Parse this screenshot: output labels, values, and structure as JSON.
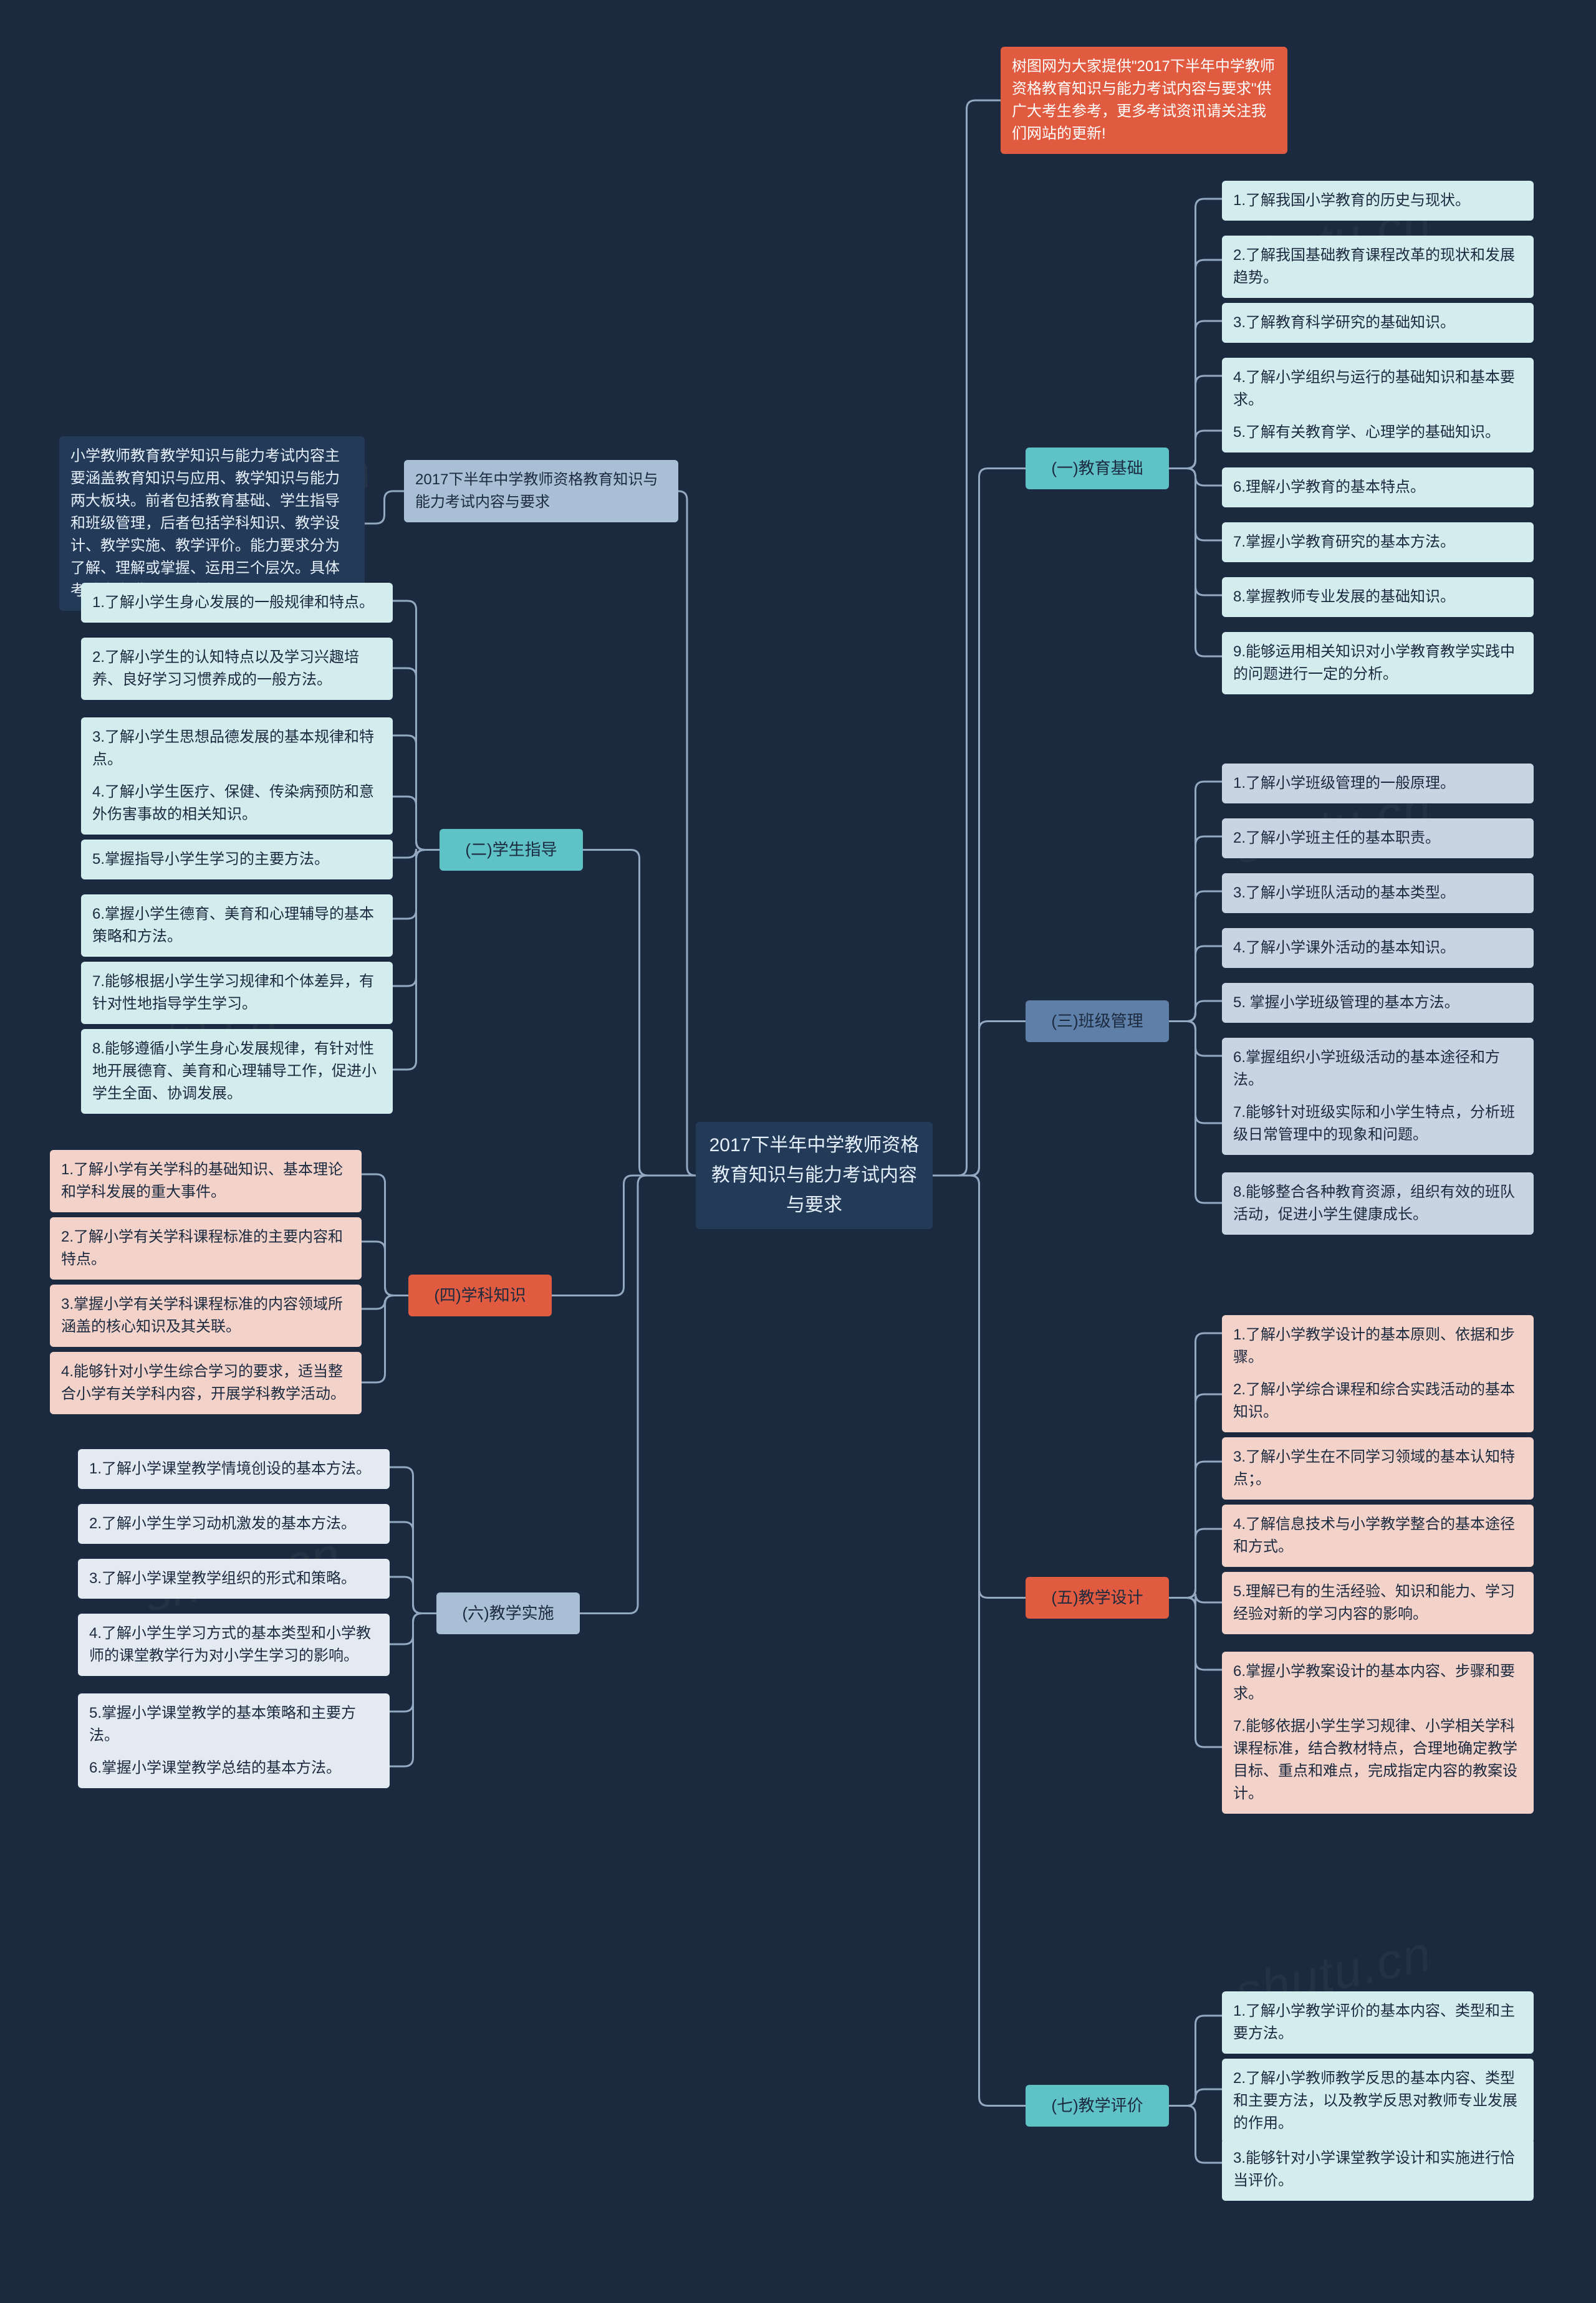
{
  "bg": "#1c2a3f",
  "watermark_text": "shutu.cn",
  "root": {
    "text": "2017下半年中学教师资格教育知识与能力考试内容与要求",
    "bg": "#233a59",
    "fg": "#e6f0fa"
  },
  "intro": {
    "text": "树图网为大家提供\"2017下半年中学教师资格教育知识与能力考试内容与要求\"供广大考生参考，更多考试资讯请关注我们网站的更新!",
    "bg": "#e05b3f",
    "fg": "#ffffff"
  },
  "left_title": {
    "text": "2017下半年中学教师资格教育知识与能力考试内容与要求",
    "bg": "#a9bfd6",
    "fg": "#1c2a3f"
  },
  "left_desc": {
    "text": "小学教师教育教学知识与能力考试内容主要涵盖教育知识与应用、教学知识与能力两大板块。前者包括教育基础、学生指导和班级管理，后者包括学科知识、教学设计、教学实施、教学评价。能力要求分为了解、理解或掌握、运用三个层次。具体考试内容模块与要求如下：",
    "bg": "#233a59",
    "fg": "#e6f0fa"
  },
  "categories": {
    "c1": {
      "label": "(一)教育基础",
      "bg": "#5fc2c7",
      "leaf_bg": "#d3edee"
    },
    "c2": {
      "label": "(二)学生指导",
      "bg": "#5fc2c7",
      "leaf_bg": "#d3edee"
    },
    "c3": {
      "label": "(三)班级管理",
      "bg": "#5e7fa8",
      "leaf_bg": "#c9d4e2"
    },
    "c4": {
      "label": "(四)学科知识",
      "bg": "#e05b3f",
      "leaf_bg": "#f3d2ca"
    },
    "c5": {
      "label": "(五)教学设计",
      "bg": "#e05b3f",
      "leaf_bg": "#f3d2ca"
    },
    "c6": {
      "label": "(六)教学实施",
      "bg": "#a9bfd6",
      "leaf_bg": "#e3eaf1"
    },
    "c7": {
      "label": "(七)教学评价",
      "bg": "#5fc2c7",
      "leaf_bg": "#d3edee"
    }
  },
  "leaves": {
    "c1": [
      "1.了解我国小学教育的历史与现状。",
      "2.了解我国基础教育课程改革的现状和发展趋势。",
      "3.了解教育科学研究的基础知识。",
      "4.了解小学组织与运行的基础知识和基本要求。",
      "5.了解有关教育学、心理学的基础知识。",
      "6.理解小学教育的基本特点。",
      "7.掌握小学教育研究的基本方法。",
      "8.掌握教师专业发展的基础知识。",
      "9.能够运用相关知识对小学教育教学实践中的问题进行一定的分析。"
    ],
    "c2": [
      "1.了解小学生身心发展的一般规律和特点。",
      "2.了解小学生的认知特点以及学习兴趣培养、良好学习习惯养成的一般方法。",
      "3.了解小学生思想品德发展的基本规律和特点。",
      "4.了解小学生医疗、保健、传染病预防和意外伤害事故的相关知识。",
      "5.掌握指导小学生学习的主要方法。",
      "6.掌握小学生德育、美育和心理辅导的基本策略和方法。",
      "7.能够根据小学生学习规律和个体差异，有针对性地指导学生学习。",
      "8.能够遵循小学生身心发展规律，有针对性地开展德育、美育和心理辅导工作，促进小学生全面、协调发展。"
    ],
    "c3": [
      "1.了解小学班级管理的一般原理。",
      "2.了解小学班主任的基本职责。",
      "3.了解小学班队活动的基本类型。",
      "4.了解小学课外活动的基本知识。",
      "5. 掌握小学班级管理的基本方法。",
      "6.掌握组织小学班级活动的基本途径和方法。",
      "7.能够针对班级实际和小学生特点，分析班级日常管理中的现象和问题。",
      "8.能够整合各种教育资源，组织有效的班队活动，促进小学生健康成长。"
    ],
    "c4": [
      "1.了解小学有关学科的基础知识、基本理论和学科发展的重大事件。",
      "2.了解小学有关学科课程标准的主要内容和特点。",
      "3.掌握小学有关学科课程标准的内容领域所涵盖的核心知识及其关联。",
      "4.能够针对小学生综合学习的要求，适当整合小学有关学科内容，开展学科教学活动。"
    ],
    "c5": [
      "1.了解小学教学设计的基本原则、依据和步骤。",
      "2.了解小学综合课程和综合实践活动的基本知识。",
      "3.了解小学生在不同学习领域的基本认知特点；。",
      "4.了解信息技术与小学教学整合的基本途径和方式。",
      "5.理解已有的生活经验、知识和能力、学习经验对新的学习内容的影响。",
      "6.掌握小学教案设计的基本内容、步骤和要求。",
      "7.能够依据小学生学习规律、小学相关学科课程标准，结合教材特点，合理地确定教学目标、重点和难点，完成指定内容的教案设计。"
    ],
    "c6": [
      "1.了解小学课堂教学情境创设的基本方法。",
      "2.了解小学生学习动机激发的基本方法。",
      "3.了解小学课堂教学组织的形式和策略。",
      "4.了解小学生学习方式的基本类型和小学教师的课堂教学行为对小学生学习的影响。",
      "5.掌握小学课堂教学的基本策略和主要方法。",
      "6.掌握小学课堂教学总结的基本方法。"
    ],
    "c7": [
      "1.了解小学教学评价的基本内容、类型和主要方法。",
      "2.了解小学教师教学反思的基本内容、类型和主要方法，以及教学反思对教师专业发展的作用。",
      "3.能够针对小学课堂教学设计和实施进行恰当评价。"
    ]
  },
  "connector_color": "#93a9c2",
  "connector_width": 3
}
